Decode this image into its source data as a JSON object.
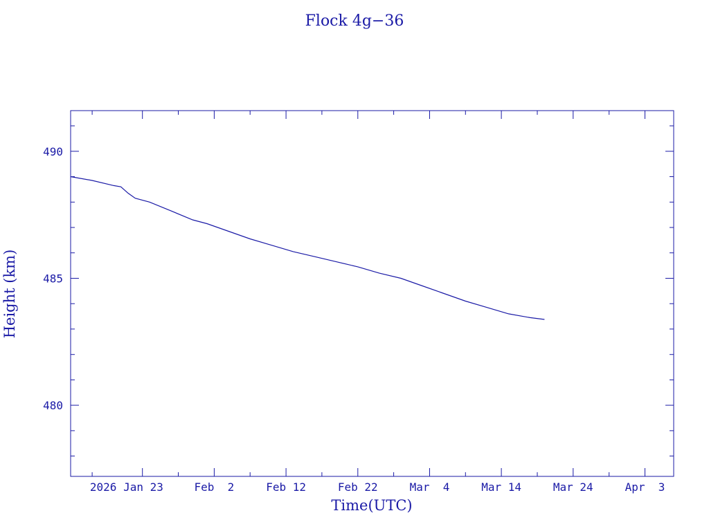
{
  "chart_data": {
    "type": "line",
    "title": "Flock 4g−36",
    "xlabel": "Time(UTC)",
    "ylabel": "Height (km)",
    "x_date_format": "YYYY-MM-DD",
    "xlim": [
      "2026-01-13",
      "2026-04-07"
    ],
    "ylim": [
      477.2,
      491.6
    ],
    "grid": false,
    "x_major_ticks": [
      {
        "date": "2026-01-23",
        "label": "2026 Jan 23"
      },
      {
        "date": "2026-02-02",
        "label": "Feb  2"
      },
      {
        "date": "2026-02-12",
        "label": "Feb 12"
      },
      {
        "date": "2026-02-22",
        "label": "Feb 22"
      },
      {
        "date": "2026-03-04",
        "label": "Mar  4"
      },
      {
        "date": "2026-03-14",
        "label": "Mar 14"
      },
      {
        "date": "2026-03-24",
        "label": "Mar 24"
      },
      {
        "date": "2026-04-03",
        "label": "Apr  3"
      }
    ],
    "x_minor_ticks": [
      "2026-01-16",
      "2026-01-28",
      "2026-02-07",
      "2026-02-17",
      "2026-02-27",
      "2026-03-09",
      "2026-03-19",
      "2026-03-29"
    ],
    "y_major_ticks": [
      480,
      485,
      490
    ],
    "y_minor_ticks": [
      478,
      479,
      481,
      482,
      483,
      484,
      486,
      487,
      488,
      489,
      491
    ],
    "series": [
      {
        "color": "#1a1aa6",
        "x": [
          "2026-01-13",
          "2026-01-16",
          "2026-01-19",
          "2026-01-20",
          "2026-01-21",
          "2026-01-22",
          "2026-01-24",
          "2026-01-27",
          "2026-01-30",
          "2026-02-01",
          "2026-02-04",
          "2026-02-07",
          "2026-02-10",
          "2026-02-13",
          "2026-02-16",
          "2026-02-19",
          "2026-02-22",
          "2026-02-25",
          "2026-02-28",
          "2026-03-03",
          "2026-03-06",
          "2026-03-09",
          "2026-03-12",
          "2026-03-15",
          "2026-03-18",
          "2026-03-20"
        ],
        "y": [
          489.0,
          488.85,
          488.65,
          488.6,
          488.35,
          488.15,
          488.0,
          487.65,
          487.3,
          487.15,
          486.85,
          486.55,
          486.3,
          486.05,
          485.85,
          485.65,
          485.45,
          485.2,
          485.0,
          484.7,
          484.4,
          484.1,
          483.85,
          483.6,
          483.45,
          483.38
        ]
      }
    ]
  }
}
